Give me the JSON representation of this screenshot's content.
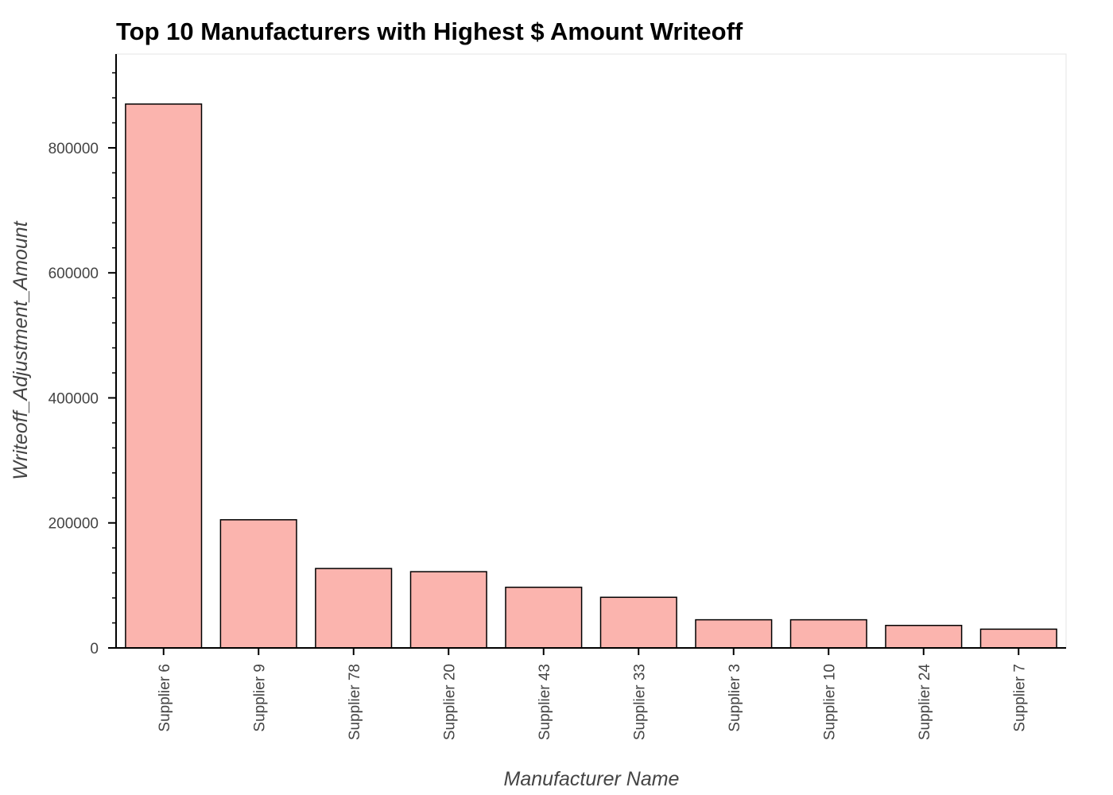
{
  "chart_data": {
    "type": "bar",
    "title": "Top 10 Manufacturers with Highest $ Amount Writeoff",
    "xlabel": "Manufacturer Name",
    "ylabel": "Writeoff_Adjustment_Amount",
    "categories": [
      "Supplier 6",
      "Supplier 9",
      "Supplier 78",
      "Supplier 20",
      "Supplier 43",
      "Supplier 33",
      "Supplier 3",
      "Supplier 10",
      "Supplier 24",
      "Supplier 7"
    ],
    "values": [
      870000,
      205000,
      127000,
      122000,
      97000,
      81000,
      45000,
      45000,
      36000,
      30000
    ],
    "ylim": [
      0,
      950000
    ],
    "yticks": [
      0,
      200000,
      400000,
      600000,
      800000
    ],
    "yminor_step": 40000,
    "grid": false,
    "legend": "none",
    "colors": {
      "bar_fill": "#fbb4ae",
      "bar_stroke": "#000000",
      "axis": "#000000",
      "frame": "#e5e5e5"
    }
  }
}
